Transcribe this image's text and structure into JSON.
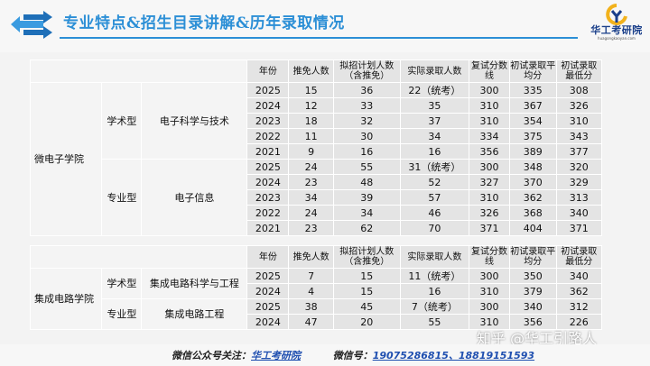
{
  "header": {
    "title": "专业特点&招生目录讲解&历年录取情况",
    "logo_name": "华工考研院",
    "logo_url": "huagongkaoyan.com"
  },
  "columns": [
    "年份",
    "推免人数",
    "拟招计划人数（含推免）",
    "实际录取人数",
    "复试分数线",
    "初试录取平均分",
    "初试录取最低分"
  ],
  "table1": {
    "college": "微电子学院",
    "groups": [
      {
        "type": "学术型",
        "major": "电子科学与技术",
        "rows": [
          [
            "2025",
            "15",
            "36",
            "22（统考）",
            "300",
            "335",
            "308"
          ],
          [
            "2024",
            "12",
            "33",
            "35",
            "310",
            "367",
            "326"
          ],
          [
            "2023",
            "18",
            "32",
            "37",
            "310",
            "354",
            "310"
          ],
          [
            "2022",
            "11",
            "30",
            "34",
            "334",
            "375",
            "343"
          ],
          [
            "2021",
            "9",
            "16",
            "16",
            "356",
            "389",
            "377"
          ]
        ]
      },
      {
        "type": "专业型",
        "major": "电子信息",
        "rows": [
          [
            "2025",
            "24",
            "55",
            "31（统考）",
            "300",
            "348",
            "320"
          ],
          [
            "2024",
            "23",
            "48",
            "52",
            "327",
            "370",
            "329"
          ],
          [
            "2023",
            "34",
            "39",
            "57",
            "310",
            "362",
            "313"
          ],
          [
            "2022",
            "24",
            "34",
            "46",
            "326",
            "368",
            "340"
          ],
          [
            "2021",
            "23",
            "62",
            "70",
            "371",
            "404",
            "371"
          ]
        ]
      }
    ]
  },
  "table2": {
    "college": "集成电路学院",
    "groups": [
      {
        "type": "学术型",
        "major": "集成电路科学与工程",
        "rows": [
          [
            "2025",
            "7",
            "15",
            "11（统考）",
            "300",
            "350",
            "340"
          ],
          [
            "2024",
            "4",
            "15",
            "16",
            "310",
            "379",
            "362"
          ]
        ]
      },
      {
        "type": "专业型",
        "major": "集成电路工程",
        "rows": [
          [
            "2025",
            "38",
            "45",
            "7（统考）",
            "300",
            "340",
            "312"
          ],
          [
            "2024",
            "47",
            "20",
            "55",
            "310",
            "356",
            "226"
          ]
        ]
      }
    ]
  },
  "footer": {
    "wechat_public_label": "微信公众号关注：",
    "wechat_public_value": "华工考研院",
    "wechat_id_label": "微信号：",
    "wechat_id_value": "19075286815、18819151593"
  },
  "watermark": "知乎 @华工引路人",
  "colors": {
    "accent": "#2c8fd6",
    "brand": "#1a3f8a"
  }
}
